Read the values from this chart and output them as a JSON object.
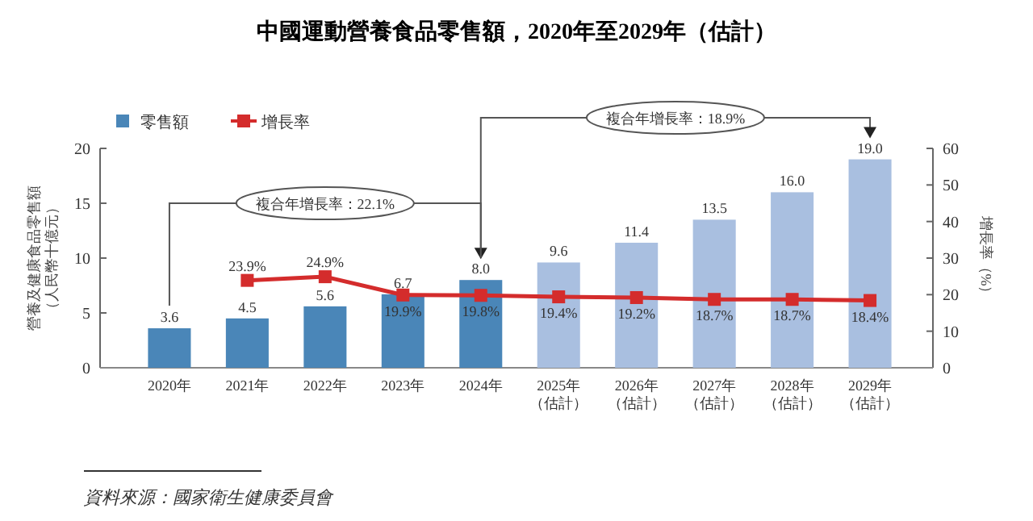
{
  "chart_data": {
    "type": "bar",
    "title": "中國運動營養食品零售額，2020年至2029年（估計）",
    "ylabel": "營養及健康食品零售額（人民幣十億元）",
    "y2label": "增長率（%）",
    "categories": [
      "2020年",
      "2021年",
      "2022年",
      "2023年",
      "2024年",
      "2025年（估計）",
      "2026年（估計）",
      "2027年（估計）",
      "2028年（估計）",
      "2029年（估計）"
    ],
    "series": [
      {
        "name": "零售額",
        "color": "#4a86b8",
        "colors": [
          "#4a86b8",
          "#4a86b8",
          "#4a86b8",
          "#4a86b8",
          "#4a86b8",
          "#a9bfe0",
          "#a9bfe0",
          "#a9bfe0",
          "#a9bfe0",
          "#a9bfe0"
        ],
        "values": [
          3.6,
          4.5,
          5.6,
          6.7,
          8.0,
          9.6,
          11.4,
          13.5,
          16.0,
          19.0
        ],
        "value_labels": [
          "3.6",
          "4.5",
          "5.6",
          "6.7",
          "8.0",
          "9.6",
          "11.4",
          "13.5",
          "16.0",
          "19.0"
        ]
      },
      {
        "name": "增長率",
        "type": "line",
        "axis": "y2",
        "color": "#d42c2c",
        "values": [
          null,
          23.9,
          24.9,
          19.9,
          19.8,
          19.4,
          19.2,
          18.7,
          18.7,
          18.4
        ],
        "value_labels": [
          null,
          "23.9%",
          "24.9%",
          "19.9%",
          "19.8%",
          "19.4%",
          "19.2%",
          "18.7%",
          "18.7%",
          "18.4%"
        ]
      }
    ],
    "ylim": [
      0,
      20
    ],
    "yticks": [
      0,
      5,
      10,
      15,
      20
    ],
    "y2lim": [
      0,
      60
    ],
    "y2ticks": [
      0,
      10,
      20,
      30,
      40,
      50,
      60
    ],
    "marker": "square",
    "grid": false,
    "legend": "top left",
    "annotations": [
      "複合年增長率：22.1%",
      "複合年增長率：18.9%",
      "資料來源：國家衛生健康委員會"
    ]
  }
}
